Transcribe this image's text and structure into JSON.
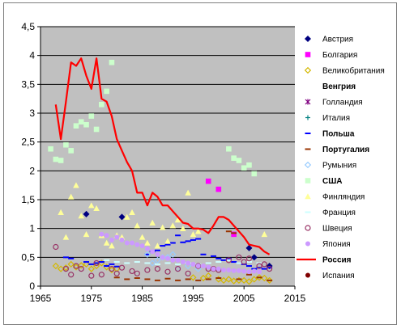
{
  "chart_data": {
    "type": "scatter",
    "title": "",
    "xlabel": "",
    "ylabel": "",
    "xlim": [
      1965,
      2015
    ],
    "ylim": [
      0,
      4.5
    ],
    "x_ticks": [
      "1965",
      "1975",
      "1985",
      "1995",
      "2005",
      "2015"
    ],
    "y_ticks": [
      "0",
      "0,5",
      "1",
      "1,5",
      "2",
      "2,5",
      "3",
      "3,5",
      "4",
      "4,5"
    ],
    "grid": "horizontal",
    "plot_background": "#c0c0c0",
    "legend_position": "right",
    "series": [
      {
        "name": "Австрия",
        "marker": "diamond",
        "color": "#000080",
        "label_style": "normal",
        "points": [
          [
            1974,
            1.25
          ],
          [
            1981,
            1.2
          ],
          [
            2006,
            0.66
          ],
          [
            2007,
            0.5
          ],
          [
            2010,
            0.35
          ]
        ]
      },
      {
        "name": "Болгария",
        "marker": "square",
        "color": "#ff00ff",
        "label_style": "normal",
        "points": [
          [
            1998,
            1.82
          ],
          [
            2000,
            1.68
          ],
          [
            2003,
            0.9
          ]
        ]
      },
      {
        "name": "Великобритания",
        "marker": "diamond-open",
        "color": "#d4b800",
        "label_style": "normal",
        "points": [
          [
            1968,
            0.35
          ],
          [
            1969,
            0.3
          ],
          [
            1970,
            0.32
          ],
          [
            1971,
            0.38
          ],
          [
            1972,
            0.33
          ],
          [
            1973,
            0.36
          ],
          [
            1974,
            0.38
          ],
          [
            1975,
            0.3
          ],
          [
            1976,
            0.35
          ],
          [
            1977,
            0.4
          ],
          [
            1978,
            0.33
          ],
          [
            1979,
            0.28
          ],
          [
            1980,
            0.3
          ],
          [
            1995,
            0.15
          ],
          [
            1997,
            0.14
          ],
          [
            1998,
            0.18
          ],
          [
            2000,
            0.12
          ],
          [
            2001,
            0.1
          ],
          [
            2002,
            0.12
          ],
          [
            2003,
            0.09
          ],
          [
            2004,
            0.1
          ],
          [
            2005,
            0.1
          ],
          [
            2006,
            0.08
          ],
          [
            2007,
            0.12
          ],
          [
            2008,
            0.15
          ],
          [
            2009,
            0.14
          ],
          [
            2010,
            0.1
          ]
        ]
      },
      {
        "name": "Венгрия",
        "marker": "none",
        "color": "#00ffff",
        "label_style": "bold",
        "points": []
      },
      {
        "name": "Голландия",
        "marker": "star",
        "color": "#800080",
        "label_style": "normal",
        "points": []
      },
      {
        "name": "Италия",
        "marker": "plus",
        "color": "#008080",
        "label_style": "normal",
        "points": []
      },
      {
        "name": "Польша",
        "marker": "dash",
        "color": "#0000ff",
        "label_style": "bold-blue",
        "points": [
          [
            1970,
            0.5
          ],
          [
            1971,
            0.48
          ],
          [
            1974,
            0.42
          ],
          [
            1975,
            0.38
          ],
          [
            1976,
            0.4
          ],
          [
            1977,
            0.42
          ],
          [
            1978,
            0.35
          ],
          [
            1979,
            0.38
          ],
          [
            1980,
            0.34
          ],
          [
            1986,
            0.55
          ],
          [
            1987,
            0.6
          ],
          [
            1988,
            0.62
          ],
          [
            1989,
            0.7
          ],
          [
            1990,
            0.72
          ],
          [
            1991,
            0.75
          ],
          [
            1992,
            0.88
          ],
          [
            1993,
            0.76
          ],
          [
            1994,
            0.78
          ],
          [
            1995,
            0.8
          ],
          [
            1996,
            0.82
          ],
          [
            1997,
            0.55
          ],
          [
            1999,
            0.52
          ],
          [
            2000,
            0.48
          ],
          [
            2001,
            0.45
          ],
          [
            2002,
            0.48
          ],
          [
            2003,
            0.42
          ],
          [
            2004,
            0.4
          ],
          [
            2005,
            0.38
          ],
          [
            2006,
            0.35
          ],
          [
            2007,
            0.3
          ],
          [
            2008,
            0.32
          ],
          [
            2009,
            0.3
          ],
          [
            2010,
            0.32
          ]
        ]
      },
      {
        "name": "Португалия",
        "marker": "dash",
        "color": "#993300",
        "label_style": "bold-brown",
        "points": [
          [
            1980,
            0.15
          ],
          [
            1982,
            0.12
          ],
          [
            1984,
            0.14
          ],
          [
            1986,
            0.12
          ],
          [
            1988,
            0.1
          ],
          [
            1990,
            0.13
          ],
          [
            1992,
            0.1
          ],
          [
            1994,
            0.12
          ],
          [
            1996,
            0.1
          ],
          [
            1998,
            0.12
          ],
          [
            2000,
            0.14
          ],
          [
            2002,
            0.95
          ],
          [
            2003,
            0.92
          ],
          [
            2004,
            0.12
          ],
          [
            2006,
            0.2
          ],
          [
            2008,
            0.15
          ],
          [
            2010,
            0.1
          ]
        ]
      },
      {
        "name": "Румыния",
        "marker": "diamond-open",
        "color": "#99ccff",
        "label_style": "normal",
        "points": [
          [
            1986,
            0.55
          ],
          [
            1987,
            0.4
          ],
          [
            1988,
            0.45
          ],
          [
            1989,
            0.5
          ],
          [
            1990,
            0.5
          ],
          [
            1991,
            0.55
          ],
          [
            1992,
            0.3
          ],
          [
            1994,
            0.35
          ],
          [
            1996,
            0.3
          ]
        ]
      },
      {
        "name": "США",
        "marker": "square",
        "color": "#ccffcc",
        "label_style": "bold",
        "points": [
          [
            1967,
            2.38
          ],
          [
            1968,
            2.2
          ],
          [
            1969,
            2.18
          ],
          [
            1970,
            2.45
          ],
          [
            1971,
            2.35
          ],
          [
            1972,
            2.78
          ],
          [
            1973,
            2.85
          ],
          [
            1974,
            2.8
          ],
          [
            1975,
            2.95
          ],
          [
            1976,
            2.72
          ],
          [
            1977,
            3.15
          ],
          [
            1978,
            3.38
          ],
          [
            1979,
            3.88
          ],
          [
            2002,
            2.38
          ],
          [
            2003,
            2.22
          ],
          [
            2004,
            2.18
          ],
          [
            2005,
            2.05
          ],
          [
            2006,
            2.1
          ],
          [
            2007,
            1.95
          ]
        ]
      },
      {
        "name": "Финляндия",
        "marker": "triangle",
        "color": "#ffff99",
        "label_style": "normal",
        "points": [
          [
            1969,
            1.28
          ],
          [
            1970,
            0.85
          ],
          [
            1971,
            1.55
          ],
          [
            1972,
            1.75
          ],
          [
            1973,
            1.22
          ],
          [
            1974,
            0.9
          ],
          [
            1975,
            1.4
          ],
          [
            1976,
            1.35
          ],
          [
            1977,
            0.88
          ],
          [
            1978,
            0.75
          ],
          [
            1979,
            0.7
          ],
          [
            1980,
            0.88
          ],
          [
            1981,
            0.85
          ],
          [
            1982,
            1.2
          ],
          [
            1983,
            1.28
          ],
          [
            1984,
            1.05
          ],
          [
            1985,
            0.85
          ],
          [
            1986,
            0.75
          ],
          [
            1987,
            1.1
          ],
          [
            1988,
            0.7
          ],
          [
            1989,
            1.02
          ],
          [
            1990,
            0.78
          ],
          [
            1991,
            1.05
          ],
          [
            1992,
            1.15
          ],
          [
            1993,
            1.0
          ],
          [
            1994,
            1.62
          ],
          [
            1995,
            0.9
          ],
          [
            1996,
            0.95
          ],
          [
            2009,
            0.9
          ]
        ]
      },
      {
        "name": "Франция",
        "marker": "dash",
        "color": "#ccffff",
        "label_style": "normal",
        "points": [
          [
            1978,
            0.45
          ],
          [
            1980,
            0.42
          ],
          [
            1982,
            0.4
          ],
          [
            1984,
            0.42
          ],
          [
            1986,
            0.4
          ],
          [
            1988,
            0.38
          ],
          [
            1990,
            0.4
          ],
          [
            1992,
            0.38
          ],
          [
            1994,
            0.4
          ],
          [
            1996,
            0.38
          ],
          [
            1998,
            0.4
          ],
          [
            2000,
            0.42
          ],
          [
            2002,
            0.45
          ],
          [
            2004,
            0.4
          ],
          [
            2006,
            0.42
          ],
          [
            2008,
            0.4
          ]
        ]
      },
      {
        "name": "Швеция",
        "marker": "circle-open",
        "color": "#993366",
        "label_style": "normal",
        "points": [
          [
            1968,
            0.68
          ],
          [
            1970,
            0.3
          ],
          [
            1971,
            0.2
          ],
          [
            1972,
            0.35
          ],
          [
            1973,
            0.3
          ],
          [
            1975,
            0.18
          ],
          [
            1976,
            0.4
          ],
          [
            1977,
            0.2
          ],
          [
            1979,
            0.3
          ],
          [
            1980,
            0.22
          ],
          [
            1981,
            0.32
          ],
          [
            1983,
            0.26
          ],
          [
            1984,
            0.22
          ],
          [
            1986,
            0.28
          ],
          [
            1988,
            0.3
          ],
          [
            1990,
            0.25
          ],
          [
            1992,
            0.3
          ],
          [
            1994,
            0.22
          ],
          [
            1996,
            0.35
          ],
          [
            1998,
            0.3
          ],
          [
            1999,
            0.3
          ],
          [
            2000,
            0.28
          ],
          [
            2002,
            0.45
          ],
          [
            2004,
            0.5
          ],
          [
            2005,
            0.42
          ],
          [
            2006,
            0.48
          ],
          [
            2008,
            0.35
          ],
          [
            2009,
            0.38
          ],
          [
            2010,
            0.3
          ]
        ]
      },
      {
        "name": "Япония",
        "marker": "circle",
        "color": "#cc99ff",
        "label_style": "normal",
        "points": [
          [
            1977,
            0.9
          ],
          [
            1978,
            0.88
          ],
          [
            1979,
            0.8
          ],
          [
            1980,
            0.85
          ],
          [
            1981,
            0.8
          ],
          [
            1982,
            0.75
          ],
          [
            1983,
            0.75
          ],
          [
            1984,
            0.72
          ],
          [
            1985,
            0.7
          ],
          [
            1986,
            0.65
          ],
          [
            1987,
            0.6
          ],
          [
            1988,
            0.55
          ],
          [
            1989,
            0.5
          ],
          [
            1990,
            0.48
          ],
          [
            1991,
            0.45
          ],
          [
            1992,
            0.45
          ],
          [
            1993,
            0.42
          ],
          [
            1994,
            0.4
          ],
          [
            1995,
            0.38
          ],
          [
            1996,
            0.35
          ],
          [
            1997,
            0.35
          ],
          [
            1998,
            0.33
          ],
          [
            1999,
            0.3
          ],
          [
            2000,
            0.3
          ],
          [
            2001,
            0.28
          ],
          [
            2002,
            0.28
          ],
          [
            2003,
            0.27
          ],
          [
            2004,
            0.27
          ],
          [
            2005,
            0.26
          ],
          [
            2006,
            0.25
          ],
          [
            2007,
            0.26
          ],
          [
            2008,
            0.25
          ]
        ]
      },
      {
        "name": "Россия",
        "marker": "line",
        "color": "#ff0000",
        "label_style": "bold-red",
        "points": [
          [
            1968,
            3.15
          ],
          [
            1969,
            2.55
          ],
          [
            1970,
            3.2
          ],
          [
            1971,
            3.88
          ],
          [
            1972,
            3.82
          ],
          [
            1973,
            3.95
          ],
          [
            1974,
            3.65
          ],
          [
            1975,
            3.42
          ],
          [
            1976,
            3.95
          ],
          [
            1977,
            3.25
          ],
          [
            1978,
            3.2
          ],
          [
            1979,
            2.95
          ],
          [
            1980,
            2.55
          ],
          [
            1981,
            2.35
          ],
          [
            1982,
            2.15
          ],
          [
            1983,
            2.0
          ],
          [
            1984,
            1.62
          ],
          [
            1985,
            1.62
          ],
          [
            1986,
            1.4
          ],
          [
            1987,
            1.62
          ],
          [
            1988,
            1.55
          ],
          [
            1989,
            1.4
          ],
          [
            1990,
            1.4
          ],
          [
            1991,
            1.3
          ],
          [
            1992,
            1.2
          ],
          [
            1993,
            1.1
          ],
          [
            1994,
            1.08
          ],
          [
            1995,
            1.0
          ],
          [
            1996,
            1.0
          ],
          [
            1997,
            0.98
          ],
          [
            1998,
            0.92
          ],
          [
            1999,
            1.05
          ],
          [
            2000,
            1.2
          ],
          [
            2001,
            1.2
          ],
          [
            2002,
            1.15
          ],
          [
            2003,
            1.05
          ],
          [
            2004,
            0.95
          ],
          [
            2005,
            0.85
          ],
          [
            2006,
            0.72
          ],
          [
            2007,
            0.7
          ],
          [
            2008,
            0.68
          ],
          [
            2009,
            0.6
          ],
          [
            2010,
            0.55
          ]
        ]
      },
      {
        "name": "Испания",
        "marker": "circle",
        "color": "#800000",
        "label_style": "normal",
        "points": []
      }
    ]
  }
}
